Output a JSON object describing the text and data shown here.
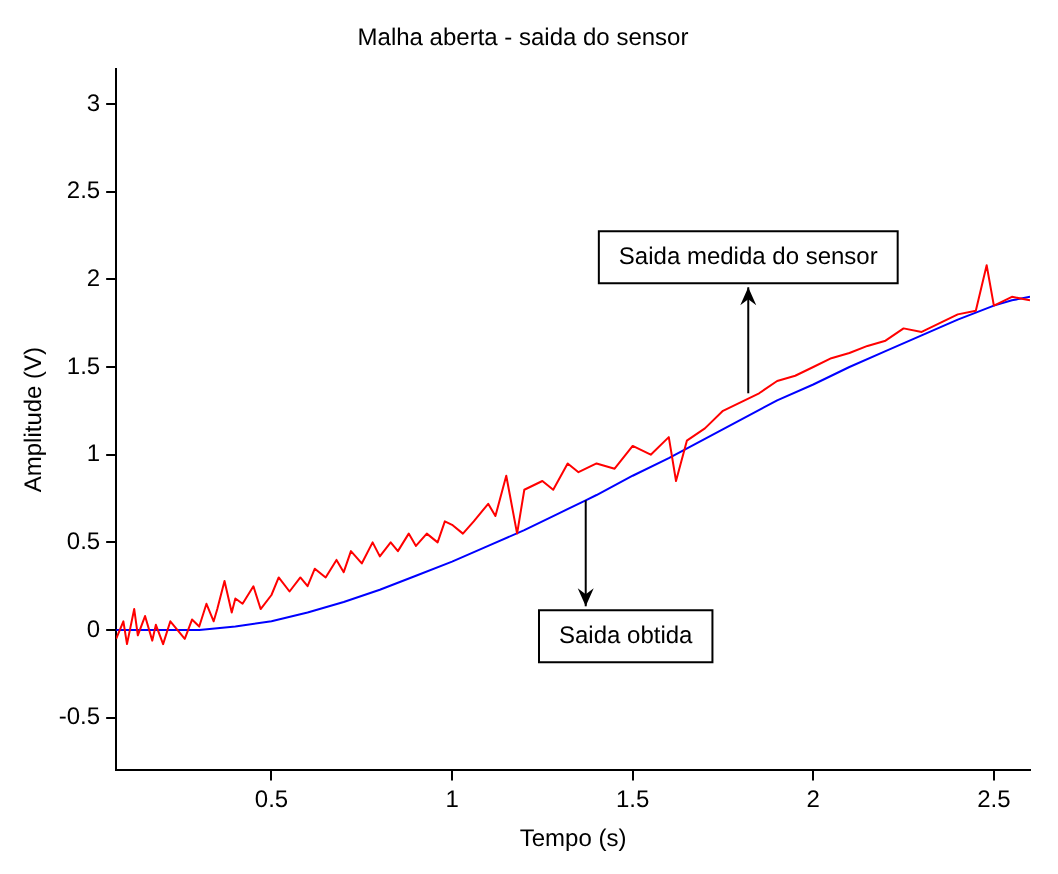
{
  "chart_data": {
    "type": "line",
    "title": "Malha aberta - saida do sensor",
    "xlabel": "Tempo (s)",
    "ylabel": "Amplitude (V)",
    "xlim": [
      0.07,
      2.6
    ],
    "ylim": [
      -0.8,
      3.2
    ],
    "xticks": [
      0.5,
      1,
      1.5,
      2,
      2.5
    ],
    "yticks": [
      -0.5,
      0,
      0.5,
      1,
      1.5,
      2,
      2.5,
      3
    ],
    "grid": false,
    "legend": false,
    "marker": "none",
    "line_style": "solid",
    "series": [
      {
        "color": "#ff0000",
        "x": [
          0.07,
          0.09,
          0.1,
          0.12,
          0.13,
          0.15,
          0.17,
          0.18,
          0.2,
          0.22,
          0.24,
          0.26,
          0.28,
          0.3,
          0.32,
          0.34,
          0.35,
          0.37,
          0.39,
          0.4,
          0.42,
          0.45,
          0.47,
          0.5,
          0.52,
          0.55,
          0.58,
          0.6,
          0.62,
          0.65,
          0.68,
          0.7,
          0.72,
          0.75,
          0.78,
          0.8,
          0.83,
          0.85,
          0.88,
          0.9,
          0.93,
          0.96,
          0.98,
          1.0,
          1.03,
          1.06,
          1.1,
          1.12,
          1.15,
          1.18,
          1.2,
          1.25,
          1.28,
          1.32,
          1.35,
          1.4,
          1.45,
          1.5,
          1.55,
          1.6,
          1.62,
          1.65,
          1.7,
          1.75,
          1.8,
          1.85,
          1.9,
          1.95,
          2.0,
          2.05,
          2.1,
          2.15,
          2.2,
          2.25,
          2.3,
          2.35,
          2.4,
          2.45,
          2.48,
          2.5,
          2.55,
          2.6
        ],
        "values": [
          -0.05,
          0.05,
          -0.08,
          0.12,
          -0.03,
          0.08,
          -0.06,
          0.03,
          -0.08,
          0.05,
          0,
          -0.05,
          0.06,
          0.02,
          0.15,
          0.05,
          0.12,
          0.28,
          0.1,
          0.18,
          0.15,
          0.25,
          0.12,
          0.2,
          0.3,
          0.22,
          0.3,
          0.25,
          0.35,
          0.3,
          0.4,
          0.33,
          0.45,
          0.38,
          0.5,
          0.42,
          0.5,
          0.45,
          0.55,
          0.48,
          0.55,
          0.5,
          0.62,
          0.6,
          0.55,
          0.62,
          0.72,
          0.65,
          0.88,
          0.55,
          0.8,
          0.85,
          0.8,
          0.95,
          0.9,
          0.95,
          0.92,
          1.05,
          1.0,
          1.1,
          0.85,
          1.08,
          1.15,
          1.25,
          1.3,
          1.35,
          1.42,
          1.45,
          1.5,
          1.55,
          1.58,
          1.62,
          1.65,
          1.72,
          1.7,
          1.75,
          1.8,
          1.82,
          2.08,
          1.85,
          1.9,
          1.88
        ]
      },
      {
        "color": "#0000ff",
        "x": [
          0.07,
          0.2,
          0.3,
          0.35,
          0.4,
          0.5,
          0.6,
          0.7,
          0.8,
          0.9,
          1.0,
          1.1,
          1.2,
          1.3,
          1.37,
          1.4,
          1.5,
          1.6,
          1.7,
          1.8,
          1.9,
          2.0,
          2.1,
          2.2,
          2.3,
          2.4,
          2.5,
          2.55,
          2.6
        ],
        "values": [
          0,
          0,
          0,
          0.01,
          0.02,
          0.05,
          0.1,
          0.16,
          0.23,
          0.31,
          0.39,
          0.48,
          0.57,
          0.67,
          0.74,
          0.77,
          0.88,
          0.98,
          1.09,
          1.2,
          1.31,
          1.4,
          1.5,
          1.59,
          1.68,
          1.77,
          1.85,
          1.88,
          1.9
        ]
      }
    ],
    "annotations": [
      {
        "text": "Saida medida do sensor",
        "x": 1.82,
        "y": 1.35
      },
      {
        "text": "Saida obtida",
        "x": 1.37,
        "y": 0.74
      }
    ]
  }
}
